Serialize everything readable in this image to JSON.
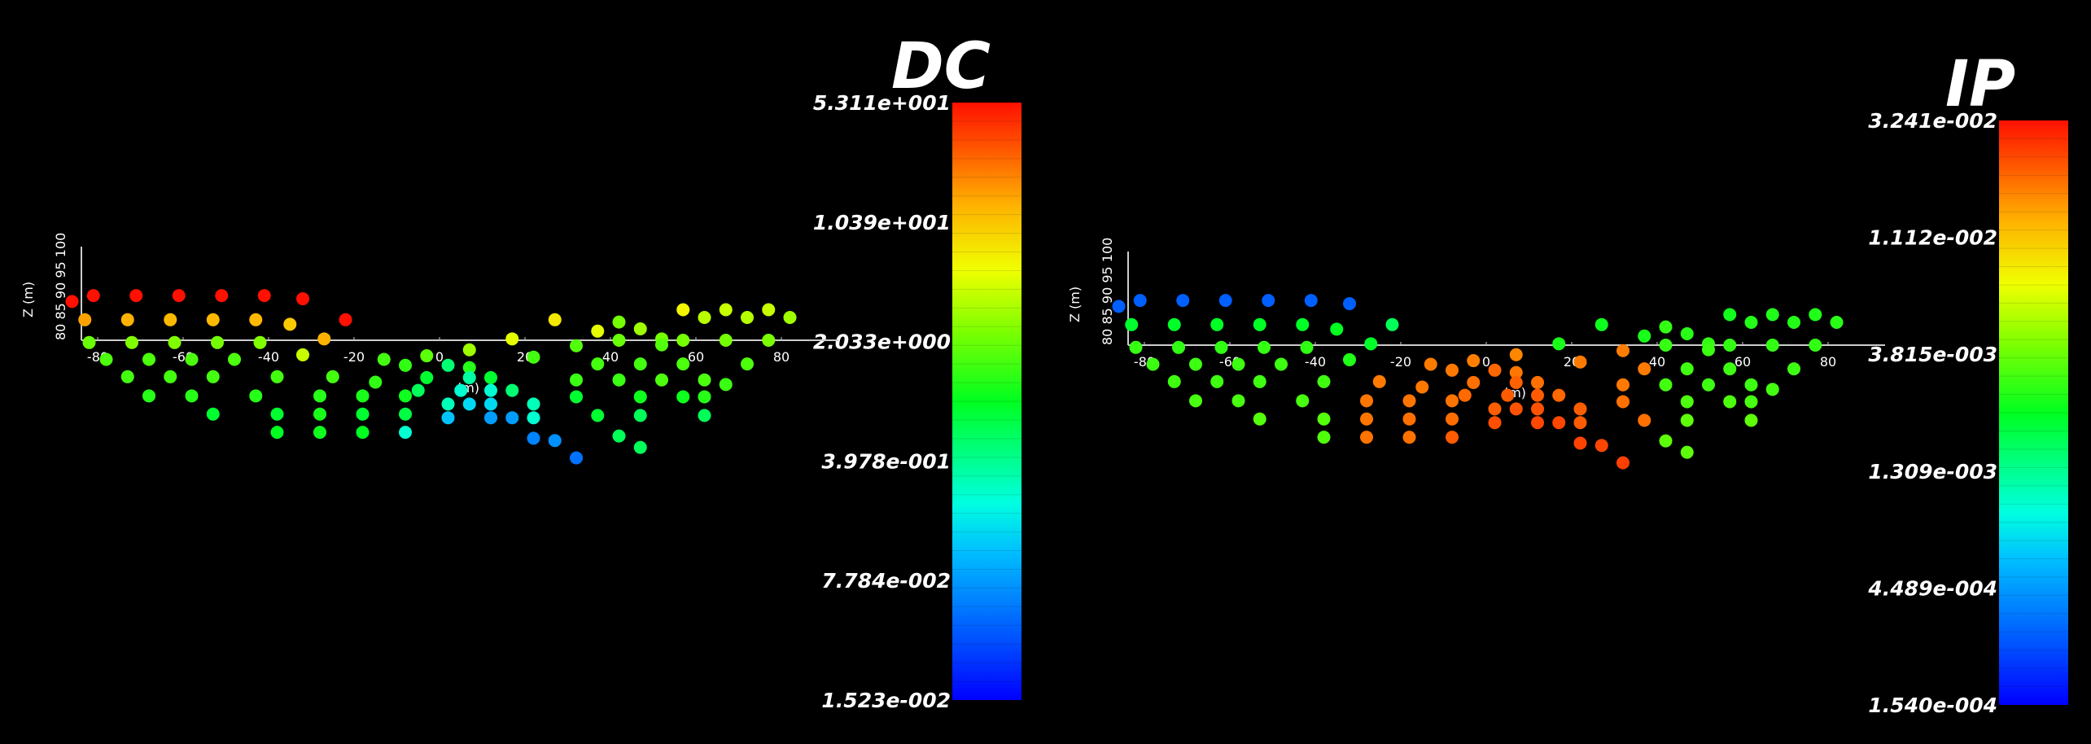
{
  "chart_data": [
    {
      "type": "scatter",
      "title": "DC",
      "colorbar": {
        "labels": [
          "5.311e+001",
          "1.039e+001",
          "2.033e+000",
          "3.978e-001",
          "7.784e-002",
          "1.523e-002"
        ],
        "max": 53.11,
        "min": 0.01523,
        "scale": "log",
        "colormap": "blue-cyan-green-yellow-red"
      },
      "xlabel": "(m)",
      "ylabel": "Z (m)",
      "xticks": [
        "-80",
        "-60",
        "-40",
        "-20",
        "0",
        "20",
        "40",
        "60",
        "80"
      ],
      "yticks": [
        "80",
        "85",
        "90",
        "95",
        "100"
      ],
      "xlim": [
        -85,
        85
      ],
      "points": [
        [
          -86,
          88.5,
          53
        ],
        [
          -81,
          89.8,
          53
        ],
        [
          -71,
          89.8,
          53
        ],
        [
          -61,
          89.8,
          53
        ],
        [
          -51,
          89.8,
          53
        ],
        [
          -41,
          89.8,
          53
        ],
        [
          -32,
          89.1,
          53
        ],
        [
          -83,
          84.5,
          15
        ],
        [
          -73,
          84.5,
          13
        ],
        [
          -63,
          84.5,
          12
        ],
        [
          -53,
          84.5,
          12
        ],
        [
          -43,
          84.5,
          12
        ],
        [
          -35,
          83.5,
          10
        ],
        [
          -22,
          84.5,
          53
        ],
        [
          -27,
          80.3,
          13
        ],
        [
          -82,
          79.5,
          2
        ],
        [
          -72,
          79.5,
          2.4
        ],
        [
          -62,
          79.5,
          2.4
        ],
        [
          -52,
          79.5,
          2.2
        ],
        [
          -42,
          79.5,
          2.4
        ],
        [
          -32,
          76.8,
          4
        ],
        [
          -78,
          75.8,
          1.6
        ],
        [
          -68,
          75.8,
          1.6
        ],
        [
          -58,
          75.8,
          1.6
        ],
        [
          -48,
          75.8,
          1.6
        ],
        [
          -73,
          72.0,
          1.5
        ],
        [
          -63,
          72.0,
          1.5
        ],
        [
          -53,
          72.0,
          1.5
        ],
        [
          -38,
          72.0,
          1.5
        ],
        [
          -25,
          72.0,
          1.5
        ],
        [
          -15,
          70.8,
          1.3
        ],
        [
          -68,
          67.8,
          1.2
        ],
        [
          -58,
          67.8,
          1.2
        ],
        [
          -43,
          67.8,
          1.2
        ],
        [
          -28,
          67.8,
          1.2
        ],
        [
          -18,
          67.8,
          1.1
        ],
        [
          -8,
          67.8,
          1.0
        ],
        [
          -53,
          63.8,
          0.8
        ],
        [
          -38,
          63.8,
          0.8
        ],
        [
          -28,
          63.8,
          1.1
        ],
        [
          -18,
          63.8,
          0.8
        ],
        [
          -8,
          63.8,
          0.7
        ],
        [
          -38,
          59.8,
          0.9
        ],
        [
          -28,
          59.8,
          1.0
        ],
        [
          -18,
          59.8,
          0.9
        ],
        [
          -8,
          59.8,
          0.25
        ],
        [
          -13,
          75.8,
          1.5
        ],
        [
          -3,
          76.6,
          1.8
        ],
        [
          7,
          77.9,
          3
        ],
        [
          17,
          80.3,
          5
        ],
        [
          -8,
          74.5,
          1.3
        ],
        [
          2,
          74.5,
          0.5
        ],
        [
          7,
          74.0,
          1.2
        ],
        [
          -3,
          71.8,
          0.8
        ],
        [
          7,
          71.8,
          0.35
        ],
        [
          12,
          71.8,
          0.8
        ],
        [
          -5,
          69.0,
          0.6
        ],
        [
          5,
          69.0,
          0.25
        ],
        [
          12,
          69.0,
          0.25
        ],
        [
          17,
          69.0,
          0.5
        ],
        [
          2,
          66.0,
          0.3
        ],
        [
          7,
          66.0,
          0.15
        ],
        [
          12,
          66.0,
          0.15
        ],
        [
          22,
          66.0,
          0.3
        ],
        [
          2,
          63.0,
          0.12
        ],
        [
          12,
          63.0,
          0.08
        ],
        [
          17,
          63.0,
          0.08
        ],
        [
          22,
          63.0,
          0.25
        ],
        [
          22,
          58.5,
          0.06
        ],
        [
          27,
          58.0,
          0.07
        ],
        [
          32,
          54.2,
          0.05
        ],
        [
          27,
          84.5,
          7
        ],
        [
          37,
          82.0,
          5
        ],
        [
          42,
          84.0,
          2.2
        ],
        [
          47,
          82.5,
          3
        ],
        [
          52,
          80.3,
          2.2
        ],
        [
          57,
          86.7,
          6
        ],
        [
          62,
          85.0,
          3.6
        ],
        [
          67,
          86.7,
          4
        ],
        [
          72,
          85.0,
          3.5
        ],
        [
          77,
          86.7,
          4
        ],
        [
          82,
          85.0,
          3
        ],
        [
          32,
          78.8,
          1.7
        ],
        [
          42,
          80.0,
          2.0
        ],
        [
          52,
          79.0,
          1.7
        ],
        [
          57,
          80.0,
          2.2
        ],
        [
          67,
          80.0,
          2.2
        ],
        [
          77,
          80.0,
          2.3
        ],
        [
          22,
          76.3,
          1.5
        ],
        [
          37,
          74.8,
          1.5
        ],
        [
          47,
          74.8,
          1.5
        ],
        [
          57,
          74.8,
          1.6
        ],
        [
          72,
          74.8,
          1.6
        ],
        [
          32,
          71.3,
          1.4
        ],
        [
          42,
          71.3,
          1.4
        ],
        [
          52,
          71.3,
          1.6
        ],
        [
          62,
          71.3,
          1.6
        ],
        [
          67,
          70.3,
          1.4
        ],
        [
          32,
          67.6,
          0.8
        ],
        [
          47,
          67.6,
          1.0
        ],
        [
          57,
          67.6,
          1.0
        ],
        [
          62,
          67.6,
          1.2
        ],
        [
          37,
          63.5,
          0.8
        ],
        [
          47,
          63.5,
          0.6
        ],
        [
          62,
          63.5,
          0.6
        ],
        [
          42,
          59.0,
          0.6
        ],
        [
          47,
          56.5,
          0.6
        ]
      ]
    },
    {
      "type": "scatter",
      "title": "IP",
      "colorbar": {
        "labels": [
          "3.241e-002",
          "1.112e-002",
          "3.815e-003",
          "1.309e-003",
          "4.489e-004",
          "1.540e-004"
        ],
        "max": 0.03241,
        "min": 0.000154,
        "scale": "log",
        "colormap": "blue-cyan-green-yellow-red"
      },
      "xlabel": "(m)",
      "ylabel": "Z (m)",
      "xticks": [
        "-80",
        "-60",
        "-40",
        "-20",
        "0",
        "20",
        "40",
        "60",
        "80"
      ],
      "yticks": [
        "80",
        "85",
        "90",
        "95",
        "100"
      ],
      "xlim": [
        -85,
        85
      ],
      "mirror_of": 0
    }
  ]
}
